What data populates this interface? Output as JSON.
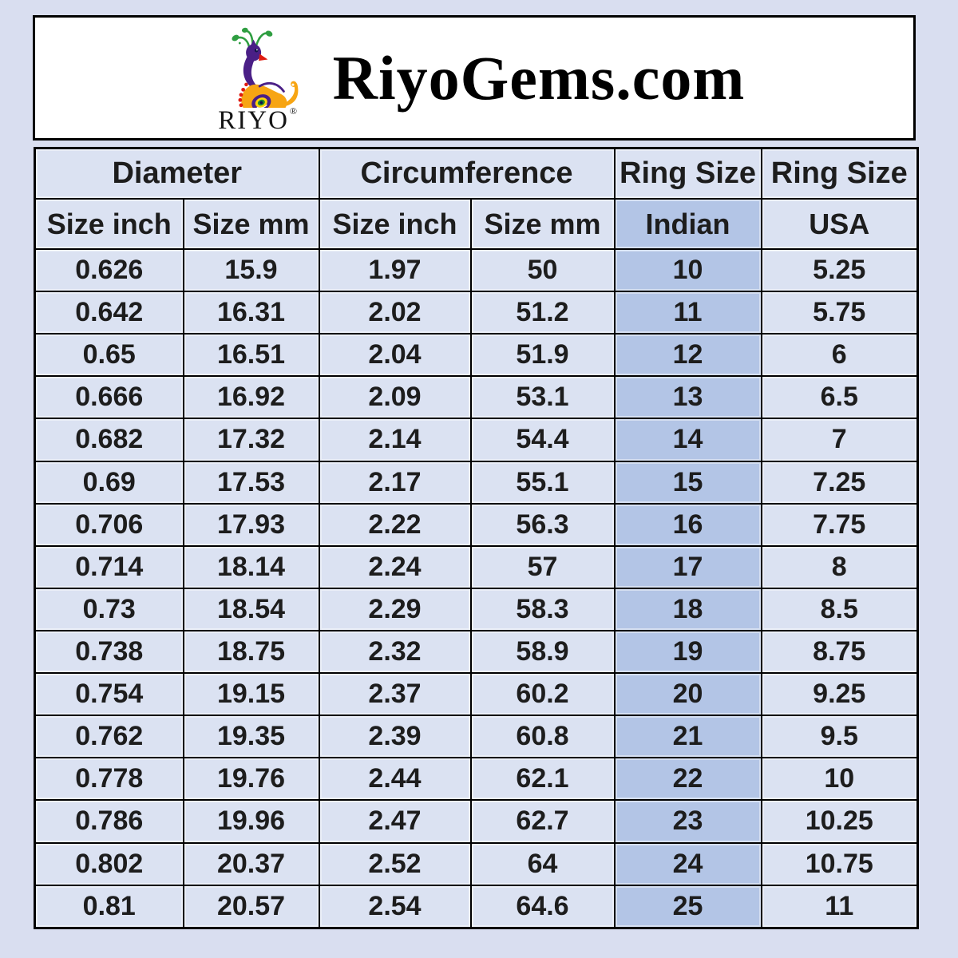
{
  "header": {
    "site_title": "RiyoGems.com",
    "logo_text": "RIYO",
    "registered_mark": "®"
  },
  "chart_data": {
    "type": "table",
    "title": "RiyoGems.com",
    "column_groups": [
      "Diameter",
      "Circumference",
      "Ring Size",
      "Ring Size"
    ],
    "columns": [
      "Size inch",
      "Size mm",
      "Size inch",
      "Size mm",
      "Indian",
      "USA"
    ],
    "highlighted_column": "Indian",
    "rows": [
      [
        "0.626",
        "15.9",
        "1.97",
        "50",
        "10",
        "5.25"
      ],
      [
        "0.642",
        "16.31",
        "2.02",
        "51.2",
        "11",
        "5.75"
      ],
      [
        "0.65",
        "16.51",
        "2.04",
        "51.9",
        "12",
        "6"
      ],
      [
        "0.666",
        "16.92",
        "2.09",
        "53.1",
        "13",
        "6.5"
      ],
      [
        "0.682",
        "17.32",
        "2.14",
        "54.4",
        "14",
        "7"
      ],
      [
        "0.69",
        "17.53",
        "2.17",
        "55.1",
        "15",
        "7.25"
      ],
      [
        "0.706",
        "17.93",
        "2.22",
        "56.3",
        "16",
        "7.75"
      ],
      [
        "0.714",
        "18.14",
        "2.24",
        "57",
        "17",
        "8"
      ],
      [
        "0.73",
        "18.54",
        "2.29",
        "58.3",
        "18",
        "8.5"
      ],
      [
        "0.738",
        "18.75",
        "2.32",
        "58.9",
        "19",
        "8.75"
      ],
      [
        "0.754",
        "19.15",
        "2.37",
        "60.2",
        "20",
        "9.25"
      ],
      [
        "0.762",
        "19.35",
        "2.39",
        "60.8",
        "21",
        "9.5"
      ],
      [
        "0.778",
        "19.76",
        "2.44",
        "62.1",
        "22",
        "10"
      ],
      [
        "0.786",
        "19.96",
        "2.47",
        "62.7",
        "23",
        "10.25"
      ],
      [
        "0.802",
        "20.37",
        "2.52",
        "64",
        "24",
        "10.75"
      ],
      [
        "0.81",
        "20.57",
        "2.54",
        "64.6",
        "25",
        "11"
      ]
    ]
  },
  "colors": {
    "page_background": "#d9def0",
    "cell_background": "#dbe2f2",
    "highlight_background": "#b3c5e6",
    "border": "#000000",
    "header_box_background": "#ffffff",
    "logo_purple": "#4a1f86",
    "logo_green": "#2f9e41",
    "logo_orange": "#f7a513",
    "logo_red": "#e01b10",
    "logo_yellow": "#ffd60a"
  }
}
